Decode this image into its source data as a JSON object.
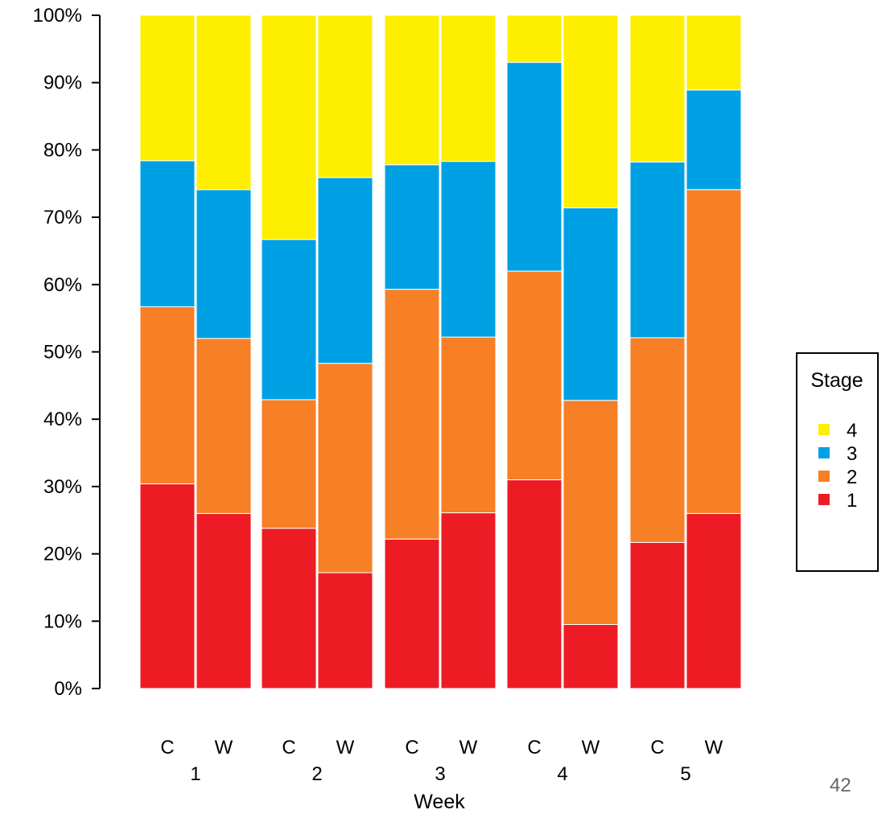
{
  "chart_data": {
    "type": "bar",
    "stacked": true,
    "percent": true,
    "xlabel": "Week",
    "ylabel": "",
    "ylim": [
      0,
      100
    ],
    "yticks": [
      "0%",
      "10%",
      "20%",
      "30%",
      "40%",
      "50%",
      "60%",
      "70%",
      "80%",
      "90%",
      "100%"
    ],
    "groups": [
      {
        "name": "1",
        "bars": [
          {
            "label": "C",
            "values": [
              30.4,
              26.3,
              21.7,
              21.6
            ]
          },
          {
            "label": "W",
            "values": [
              26.0,
              26.0,
              22.1,
              25.9
            ]
          }
        ]
      },
      {
        "name": "2",
        "bars": [
          {
            "label": "C",
            "values": [
              23.8,
              19.1,
              23.8,
              33.3
            ]
          },
          {
            "label": "W",
            "values": [
              17.2,
              31.1,
              27.6,
              24.1
            ]
          }
        ]
      },
      {
        "name": "3",
        "bars": [
          {
            "label": "C",
            "values": [
              22.2,
              37.1,
              18.5,
              22.2
            ]
          },
          {
            "label": "W",
            "values": [
              26.1,
              26.1,
              26.1,
              21.7
            ]
          }
        ]
      },
      {
        "name": "4",
        "bars": [
          {
            "label": "C",
            "values": [
              31.0,
              31.0,
              31.0,
              7.0
            ]
          },
          {
            "label": "W",
            "values": [
              9.5,
              33.3,
              28.6,
              28.6
            ]
          }
        ]
      },
      {
        "name": "5",
        "bars": [
          {
            "label": "C",
            "values": [
              21.7,
              30.4,
              26.1,
              21.8
            ]
          },
          {
            "label": "W",
            "values": [
              26.0,
              48.1,
              14.8,
              11.1
            ]
          }
        ]
      }
    ],
    "series": [
      {
        "name": "1",
        "color": "#ED1C24"
      },
      {
        "name": "2",
        "color": "#F77F26"
      },
      {
        "name": "3",
        "color": "#00A1E4"
      },
      {
        "name": "4",
        "color": "#FEEE00"
      }
    ],
    "legend": {
      "title": "Stage",
      "order": [
        "4",
        "3",
        "2",
        "1"
      ],
      "position": "right"
    }
  },
  "page_number": "42"
}
